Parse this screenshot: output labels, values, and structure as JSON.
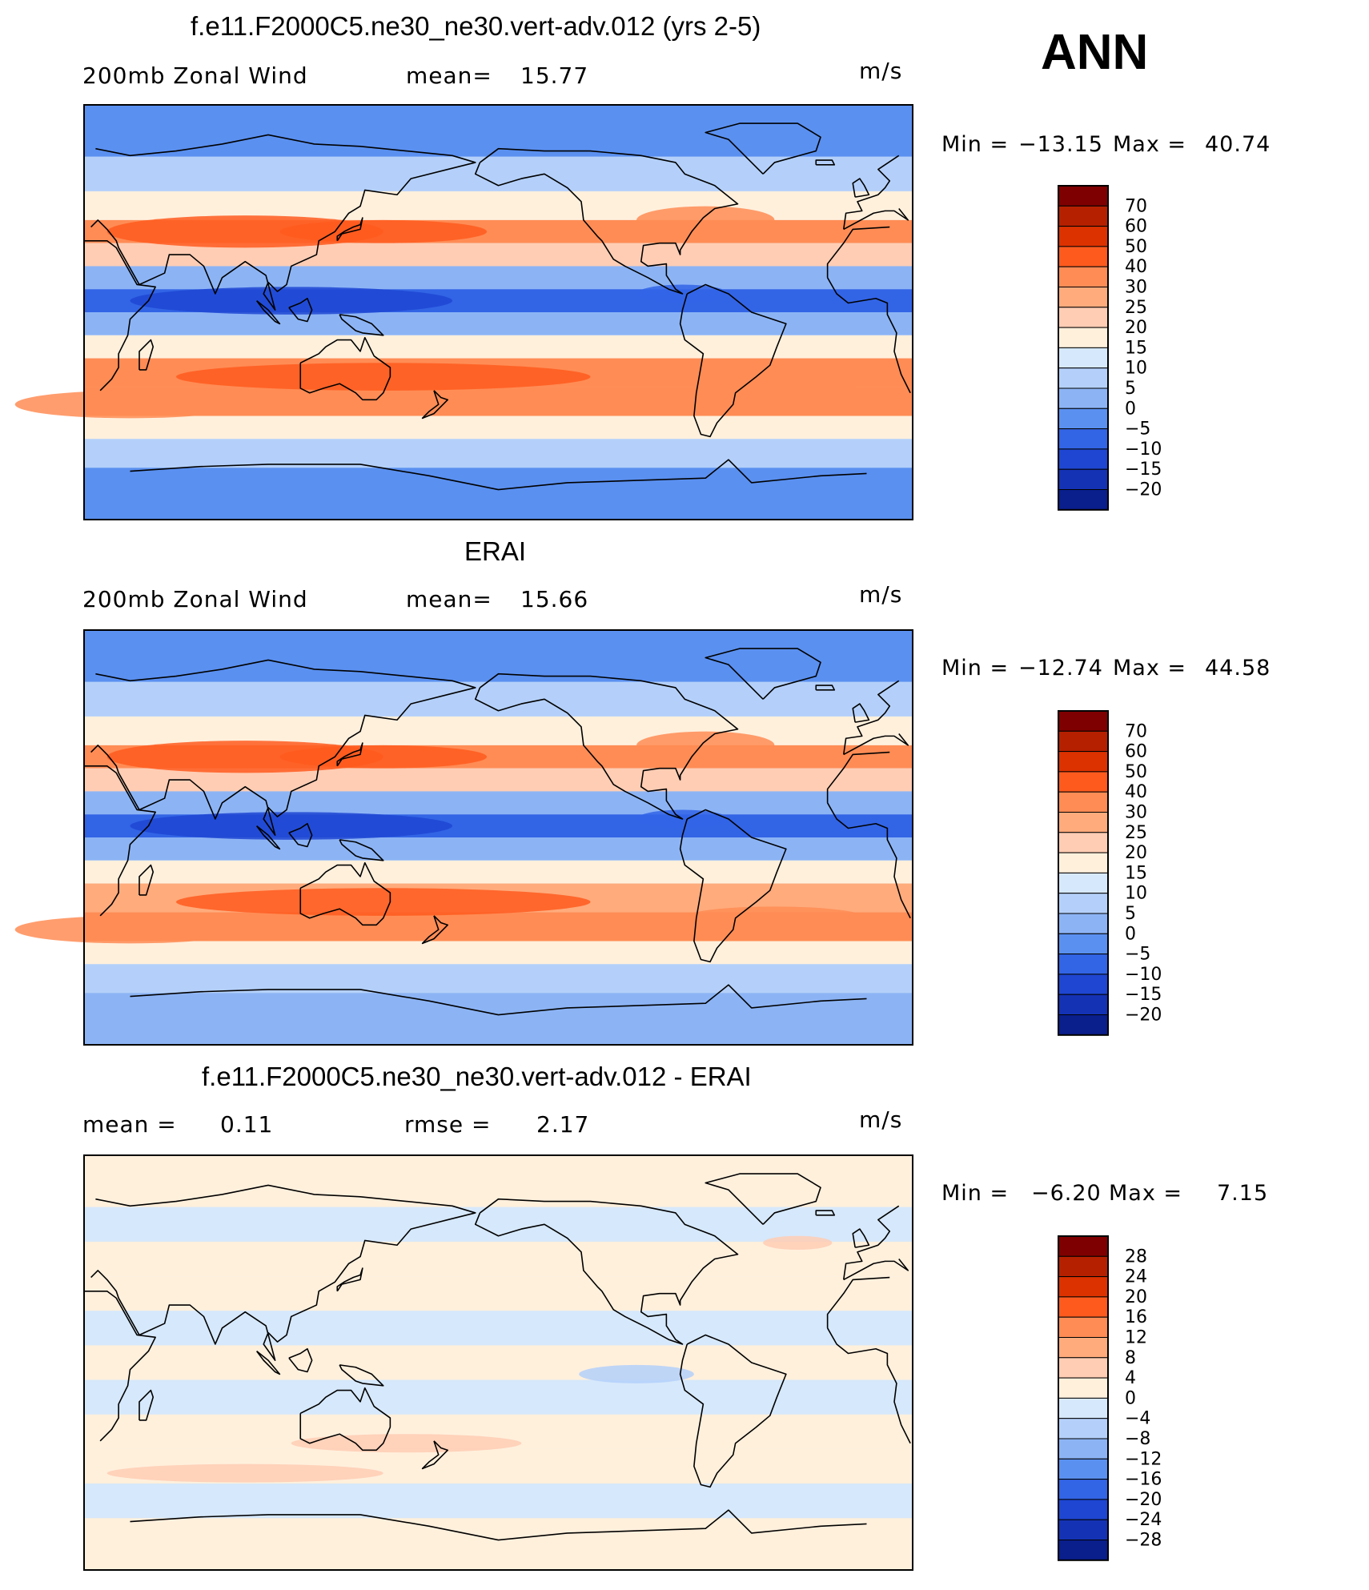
{
  "season": "ANN",
  "colors": {
    "ocean_fill": "#d6e8fb",
    "outline": "#000000",
    "bar_colors_top": [
      "#7f0000",
      "#b52000",
      "#dc3200",
      "#ff5a1e",
      "#ff8c55",
      "#ffab7c",
      "#ffcdb4",
      "#fff0dc",
      "#d6e8fb",
      "#b4d0fa",
      "#8cb4f5",
      "#5a90f0",
      "#3264e6",
      "#1e46d2",
      "#1432b4",
      "#0a1e8c"
    ],
    "bar_colors_diff": [
      "#7f0000",
      "#b52000",
      "#dc3200",
      "#ff5a1e",
      "#ff8c55",
      "#ffab7c",
      "#ffcdb4",
      "#fff0dc",
      "#d6e8fb",
      "#b4d0fa",
      "#8cb4f5",
      "#5a90f0",
      "#3264e6",
      "#1e46d2",
      "#1432b4",
      "#0a1e8c"
    ]
  },
  "chart_data": [
    {
      "type": "heatmap",
      "title": "f.e11.F2000C5.ne30_ne30.vert-adv.012 (yrs 2-5)",
      "left_label": "200mb Zonal Wind",
      "stat_label": "mean=",
      "stat_value": "15.77",
      "units": "m/s",
      "min_label": "Min =",
      "min_value": "−13.15",
      "max_label": "Max =",
      "max_value": "40.74",
      "levels": [
        "70",
        "60",
        "50",
        "40",
        "30",
        "25",
        "20",
        "15",
        "10",
        "5",
        "0",
        "−5",
        "−10",
        "−15",
        "−20"
      ],
      "bands": [
        {
          "lat": 75,
          "value": -5
        },
        {
          "lat": 60,
          "value": 5
        },
        {
          "lat": 45,
          "value": 15
        },
        {
          "lat": 35,
          "value": 30
        },
        {
          "lat": 25,
          "value": 20
        },
        {
          "lat": 15,
          "value": 0
        },
        {
          "lat": 5,
          "value": -10
        },
        {
          "lat": -5,
          "value": 0
        },
        {
          "lat": -15,
          "value": 15
        },
        {
          "lat": -25,
          "value": 30
        },
        {
          "lat": -40,
          "value": 30
        },
        {
          "lat": -50,
          "value": 15
        },
        {
          "lat": -60,
          "value": 5
        },
        {
          "lat": -75,
          "value": -5
        }
      ]
    },
    {
      "type": "heatmap",
      "title": "ERAI",
      "left_label": "200mb Zonal Wind",
      "stat_label": "mean=",
      "stat_value": "15.66",
      "units": "m/s",
      "min_label": "Min =",
      "min_value": "−12.74",
      "max_label": "Max =",
      "max_value": "44.58",
      "levels": [
        "70",
        "60",
        "50",
        "40",
        "30",
        "25",
        "20",
        "15",
        "10",
        "5",
        "0",
        "−5",
        "−10",
        "−15",
        "−20"
      ],
      "bands": [
        {
          "lat": 75,
          "value": -5
        },
        {
          "lat": 60,
          "value": 5
        },
        {
          "lat": 45,
          "value": 15
        },
        {
          "lat": 35,
          "value": 30
        },
        {
          "lat": 25,
          "value": 20
        },
        {
          "lat": 15,
          "value": 0
        },
        {
          "lat": 5,
          "value": -10
        },
        {
          "lat": -5,
          "value": 0
        },
        {
          "lat": -15,
          "value": 15
        },
        {
          "lat": -25,
          "value": 25
        },
        {
          "lat": -40,
          "value": 30
        },
        {
          "lat": -50,
          "value": 15
        },
        {
          "lat": -60,
          "value": 5
        },
        {
          "lat": -75,
          "value": 0
        }
      ]
    },
    {
      "type": "heatmap",
      "title": "f.e11.F2000C5.ne30_ne30.vert-adv.012 - ERAI",
      "left_label": "mean =",
      "left_value": "0.11",
      "stat_label": "rmse =",
      "stat_value": "2.17",
      "units": "m/s",
      "min_label": "Min =",
      "min_value": "−6.20",
      "max_label": "Max =",
      "max_value": "7.15",
      "levels": [
        "28",
        "24",
        "20",
        "16",
        "12",
        "8",
        "4",
        "0",
        "−4",
        "−8",
        "−12",
        "−16",
        "−20",
        "−24",
        "−28"
      ],
      "bands": [
        {
          "lat": 75,
          "value": 0
        },
        {
          "lat": 60,
          "value": -2
        },
        {
          "lat": 45,
          "value": 2
        },
        {
          "lat": 30,
          "value": 2
        },
        {
          "lat": 15,
          "value": -2
        },
        {
          "lat": 0,
          "value": 2
        },
        {
          "lat": -15,
          "value": -2
        },
        {
          "lat": -30,
          "value": 2
        },
        {
          "lat": -45,
          "value": 2
        },
        {
          "lat": -60,
          "value": -2
        },
        {
          "lat": -75,
          "value": 0
        }
      ]
    }
  ]
}
